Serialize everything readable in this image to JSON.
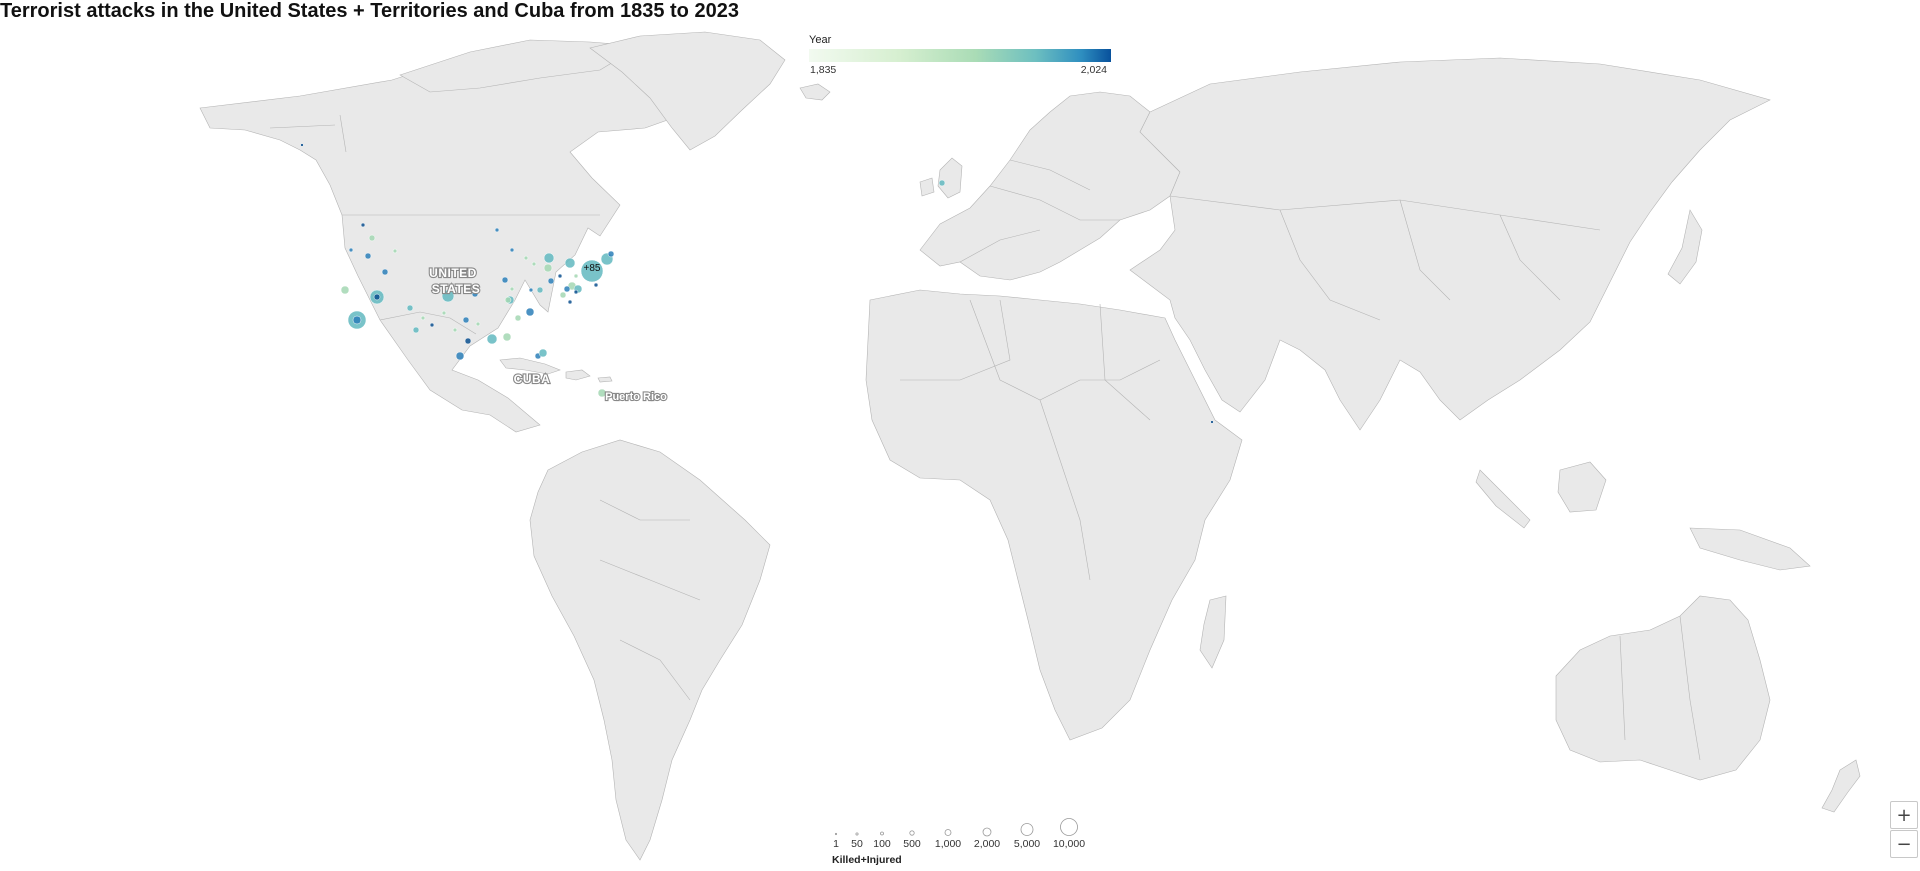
{
  "title": "Terrorist attacks in the United States + Territories and Cuba from 1835 to 2023",
  "map": {
    "labels": {
      "us": [
        "UNITED",
        "STATES"
      ],
      "cuba": "CUBA",
      "pr": "Puerto Rico"
    },
    "cluster_label": "+85",
    "land_color": "#e9e9e9",
    "border_color": "#b4b4b4"
  },
  "legend_year": {
    "title": "Year",
    "min_label": "1,835",
    "max_label": "2,024",
    "colors": [
      "#f2faf0",
      "#d6efd0",
      "#aadcb6",
      "#6dbfc0",
      "#2f8fc0",
      "#08519c"
    ]
  },
  "legend_size": {
    "title": "Killed+Injured",
    "values": [
      "1",
      "50",
      "100",
      "500",
      "1,000",
      "2,000",
      "5,000",
      "10,000"
    ]
  },
  "zoom": {
    "in_label": "+",
    "out_label": "−"
  }
}
